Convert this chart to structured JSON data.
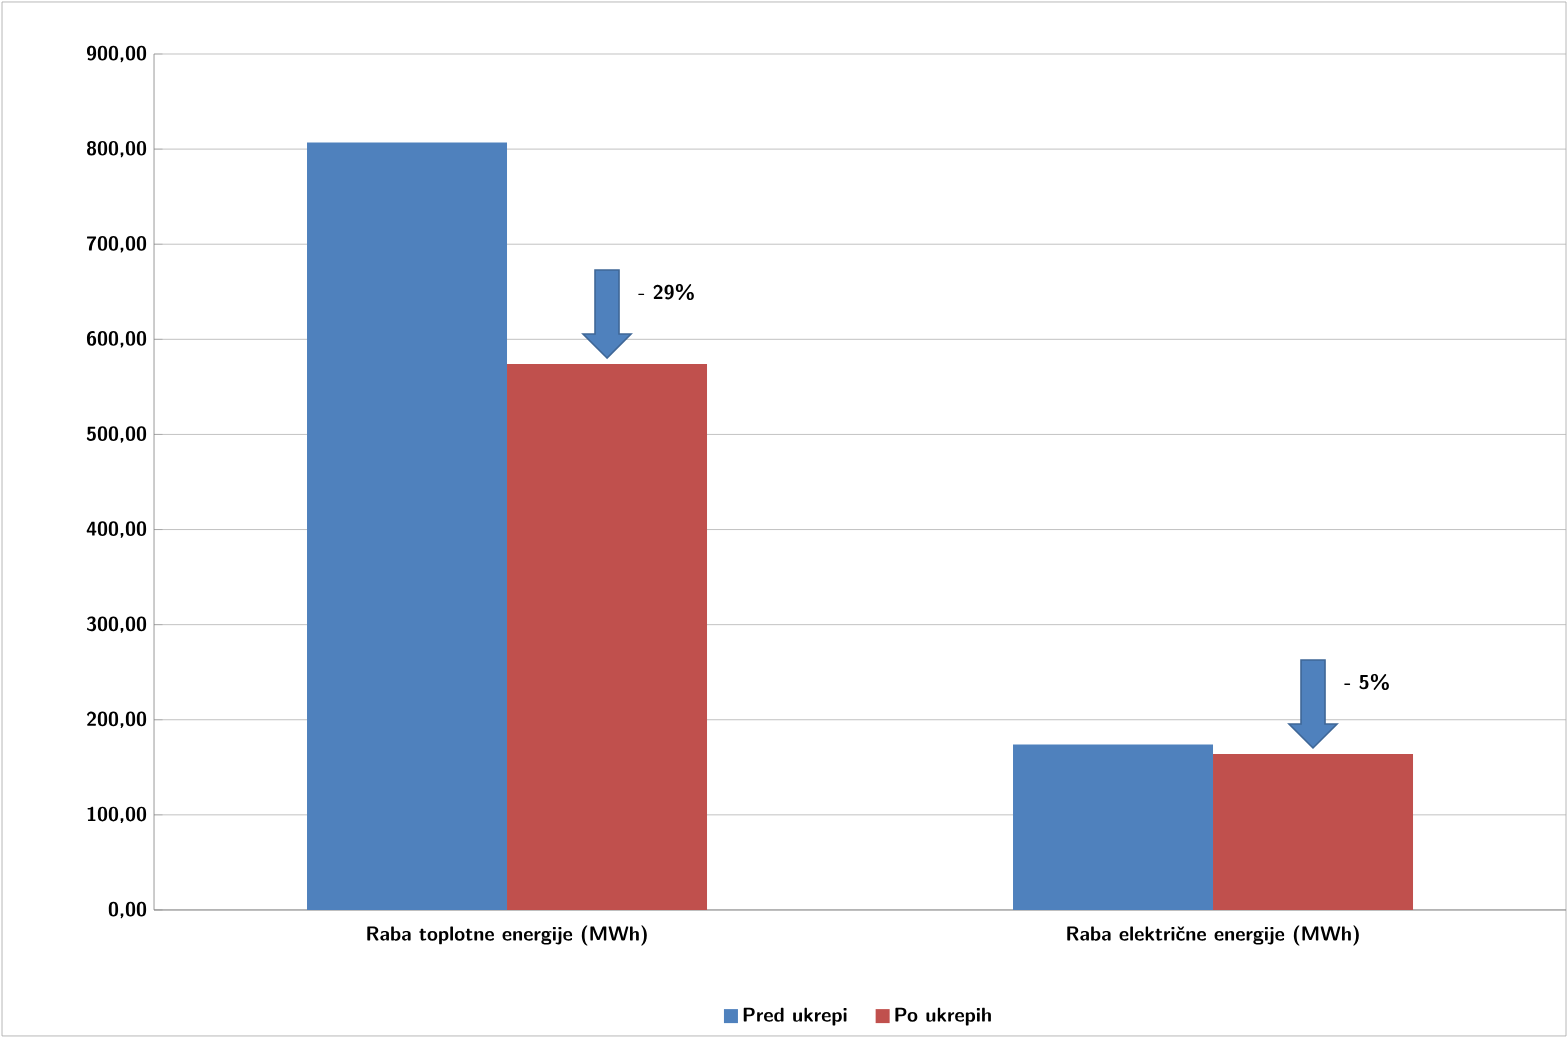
{
  "chart_data": {
    "type": "bar",
    "categories": [
      "Raba toplotne energije (MWh)",
      "Raba električne energije (MWh)"
    ],
    "series": [
      {
        "name": "Pred ukrepi",
        "color": "#4f81bd",
        "values": [
          807,
          174
        ]
      },
      {
        "name": "Po ukrepih",
        "color": "#c0504d",
        "values": [
          574,
          164
        ]
      }
    ],
    "ylim": [
      0,
      900
    ],
    "yticks": [
      {
        "value": 0,
        "label": "0,00"
      },
      {
        "value": 100,
        "label": "100,00"
      },
      {
        "value": 200,
        "label": "200,00"
      },
      {
        "value": 300,
        "label": "300,00"
      },
      {
        "value": 400,
        "label": "400,00"
      },
      {
        "value": 500,
        "label": "500,00"
      },
      {
        "value": 600,
        "label": "600,00"
      },
      {
        "value": 700,
        "label": "700,00"
      },
      {
        "value": 800,
        "label": "800,00"
      },
      {
        "value": 900,
        "label": "900,00"
      }
    ],
    "grid": "y",
    "legend": "bottom",
    "annotations": [
      "- 29%",
      "- 5%"
    ]
  }
}
